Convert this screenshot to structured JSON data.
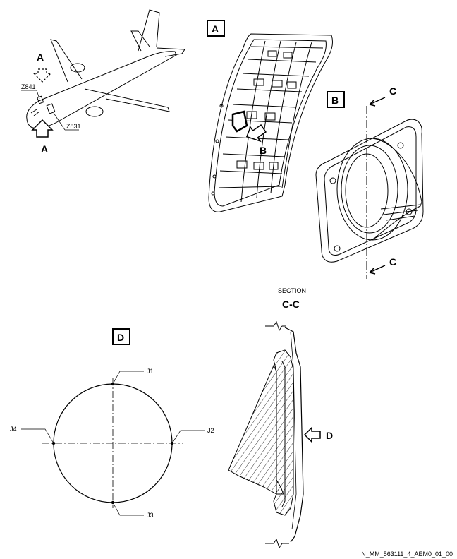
{
  "views": {
    "aircraft": {
      "label_top": "A",
      "label_bottom": "A",
      "zone_upper": "Z841",
      "zone_lower": "Z831"
    },
    "view_a": {
      "box_label": "A",
      "callout": "B"
    },
    "view_b": {
      "box_label": "B",
      "cut_top": "C",
      "cut_bottom": "C"
    },
    "section": {
      "title": "SECTION",
      "name": "C-C",
      "view_arrow": "D"
    },
    "view_d": {
      "box_label": "D",
      "points": [
        "J1",
        "J2",
        "J3",
        "J4"
      ]
    }
  },
  "figure_id": "N_MM_563111_4_AEM0_01_00"
}
